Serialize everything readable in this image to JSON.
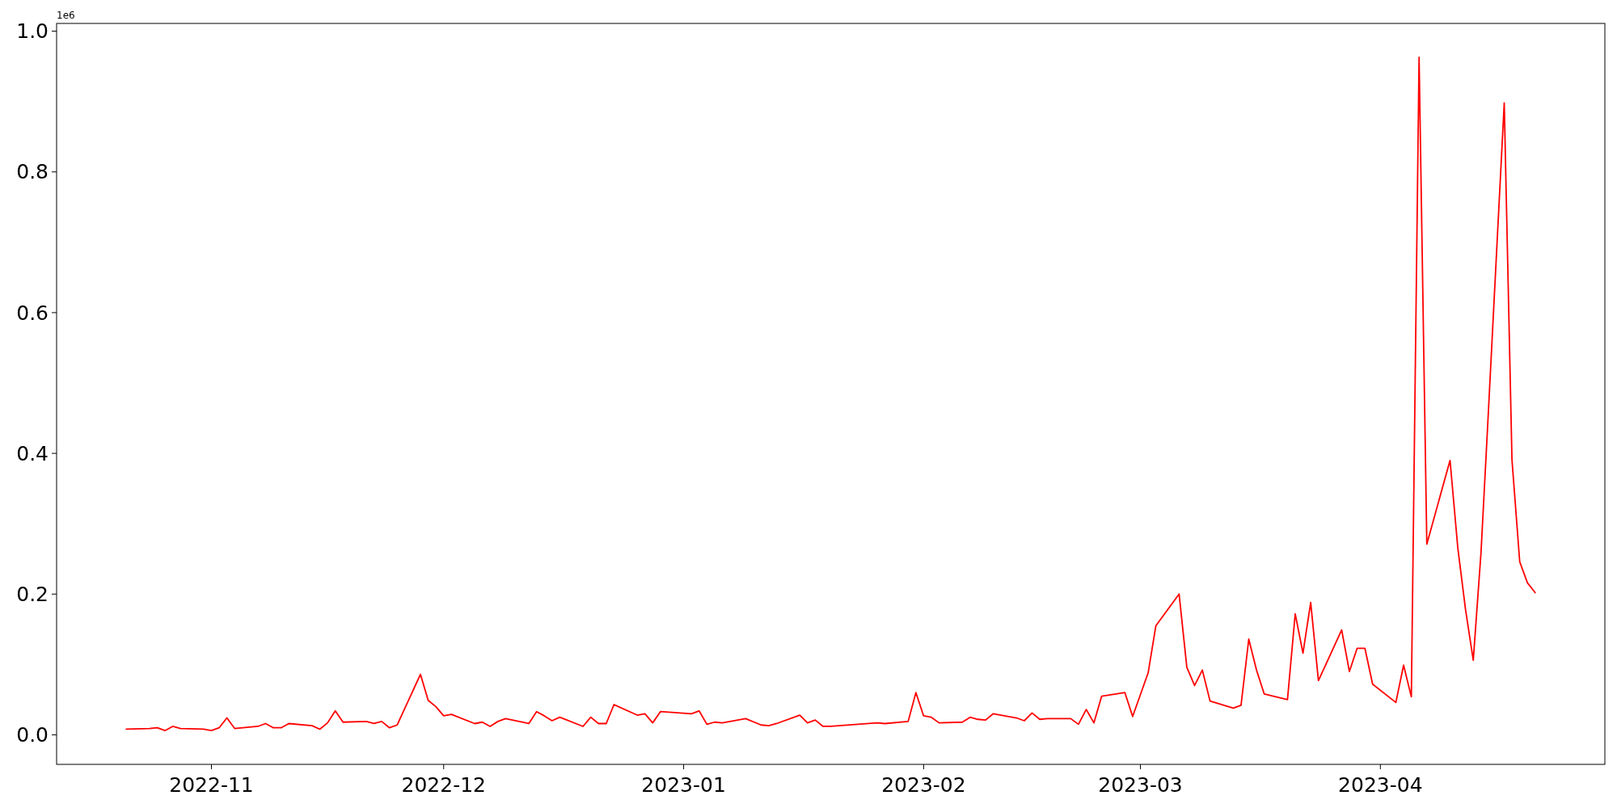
{
  "chart_data": {
    "type": "line",
    "x": [
      "2022-10-21",
      "2022-10-24",
      "2022-10-25",
      "2022-10-26",
      "2022-10-27",
      "2022-10-28",
      "2022-10-31",
      "2022-11-01",
      "2022-11-02",
      "2022-11-03",
      "2022-11-04",
      "2022-11-07",
      "2022-11-08",
      "2022-11-09",
      "2022-11-10",
      "2022-11-11",
      "2022-11-14",
      "2022-11-15",
      "2022-11-16",
      "2022-11-17",
      "2022-11-18",
      "2022-11-21",
      "2022-11-22",
      "2022-11-23",
      "2022-11-24",
      "2022-11-25",
      "2022-11-28",
      "2022-11-29",
      "2022-11-30",
      "2022-12-01",
      "2022-12-02",
      "2022-12-05",
      "2022-12-06",
      "2022-12-07",
      "2022-12-08",
      "2022-12-09",
      "2022-12-12",
      "2022-12-13",
      "2022-12-14",
      "2022-12-15",
      "2022-12-16",
      "2022-12-19",
      "2022-12-20",
      "2022-12-21",
      "2022-12-22",
      "2022-12-23",
      "2022-12-26",
      "2022-12-27",
      "2022-12-28",
      "2022-12-29",
      "2023-01-02",
      "2023-01-03",
      "2023-01-04",
      "2023-01-05",
      "2023-01-06",
      "2023-01-09",
      "2023-01-11",
      "2023-01-12",
      "2023-01-13",
      "2023-01-16",
      "2023-01-17",
      "2023-01-18",
      "2023-01-19",
      "2023-01-20",
      "2023-01-26",
      "2023-01-27",
      "2023-01-30",
      "2023-01-31",
      "2023-02-01",
      "2023-02-02",
      "2023-02-03",
      "2023-02-06",
      "2023-02-07",
      "2023-02-08",
      "2023-02-09",
      "2023-02-10",
      "2023-02-13",
      "2023-02-14",
      "2023-02-15",
      "2023-02-16",
      "2023-02-17",
      "2023-02-20",
      "2023-02-21",
      "2023-02-22",
      "2023-02-23",
      "2023-02-24",
      "2023-02-27",
      "2023-02-28",
      "2023-03-02",
      "2023-03-03",
      "2023-03-06",
      "2023-03-07",
      "2023-03-08",
      "2023-03-09",
      "2023-03-10",
      "2023-03-13",
      "2023-03-14",
      "2023-03-15",
      "2023-03-16",
      "2023-03-17",
      "2023-03-20",
      "2023-03-21",
      "2023-03-22",
      "2023-03-23",
      "2023-03-24",
      "2023-03-27",
      "2023-03-28",
      "2023-03-29",
      "2023-03-30",
      "2023-03-31",
      "2023-04-03",
      "2023-04-04",
      "2023-04-05",
      "2023-04-06",
      "2023-04-07",
      "2023-04-10",
      "2023-04-11",
      "2023-04-12",
      "2023-04-13",
      "2023-04-14",
      "2023-04-15",
      "2023-04-17",
      "2023-04-18",
      "2023-04-19",
      "2023-04-20",
      "2023-04-21"
    ],
    "series": [
      {
        "color": "#ff0000",
        "values": [
          0.008,
          0.009,
          0.01,
          0.006,
          0.012,
          0.009,
          0.008,
          0.006,
          0.01,
          0.024,
          0.009,
          0.012,
          0.016,
          0.01,
          0.01,
          0.016,
          0.013,
          0.008,
          0.017,
          0.034,
          0.018,
          0.019,
          0.016,
          0.019,
          0.01,
          0.014,
          0.086,
          0.049,
          0.04,
          0.027,
          0.029,
          0.016,
          0.018,
          0.012,
          0.019,
          0.023,
          0.016,
          0.033,
          0.027,
          0.02,
          0.025,
          0.012,
          0.025,
          0.016,
          0.016,
          0.043,
          0.028,
          0.03,
          0.017,
          0.033,
          0.03,
          0.034,
          0.015,
          0.018,
          0.017,
          0.023,
          0.014,
          0.013,
          0.016,
          0.028,
          0.017,
          0.021,
          0.012,
          0.012,
          0.017,
          0.016,
          0.019,
          0.06,
          0.027,
          0.025,
          0.017,
          0.018,
          0.025,
          0.022,
          0.021,
          0.03,
          0.024,
          0.02,
          0.031,
          0.022,
          0.023,
          0.023,
          0.015,
          0.036,
          0.017,
          0.055,
          0.06,
          0.026,
          0.088,
          0.155,
          0.2,
          0.096,
          0.07,
          0.092,
          0.048,
          0.038,
          0.042,
          0.136,
          0.092,
          0.058,
          0.05,
          0.172,
          0.116,
          0.188,
          0.077,
          0.149,
          0.09,
          0.123,
          0.123,
          0.072,
          0.046,
          0.099,
          0.054,
          0.963,
          0.271,
          0.39,
          0.266,
          0.178,
          0.106,
          0.259,
          0.469,
          0.898,
          0.391,
          0.246,
          0.216,
          0.202
        ]
      }
    ],
    "xlim": [
      "2022-10-12",
      "2023-04-30"
    ],
    "xticks": [
      {
        "value": "2022-11",
        "label": "2022-11"
      },
      {
        "value": "2022-12",
        "label": "2022-12"
      },
      {
        "value": "2023-01",
        "label": "2023-01"
      },
      {
        "value": "2023-02",
        "label": "2023-02"
      },
      {
        "value": "2023-03",
        "label": "2023-03"
      },
      {
        "value": "2023-04",
        "label": "2023-04"
      }
    ],
    "ylim": [
      -0.042,
      1.011
    ],
    "yticks": [
      {
        "value": 0,
        "label": "0.0"
      },
      0.2,
      0.4,
      0.6,
      0.8,
      {
        "value": 1,
        "label": "1.0"
      }
    ],
    "annotations": [
      "1e6"
    ],
    "grid": false,
    "marker": "none",
    "line_style": "solid"
  }
}
